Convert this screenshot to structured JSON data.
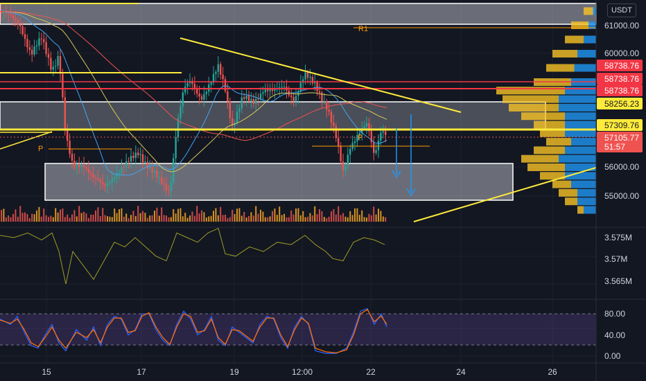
{
  "header": {
    "currency": "USDT"
  },
  "colors": {
    "background": "#131722",
    "grid": "#1e222d",
    "up_candle": "#26a69a",
    "down_candle": "#ef5350",
    "yellow_line": "#ffeb3b",
    "red_line": "#f23645",
    "zone_fill": "#b2b5be",
    "stoch_band": "#7e57c2",
    "profile_blue": "#2196f3",
    "profile_gold": "#f7c325"
  },
  "chart_data": [
    {
      "type": "candlestick",
      "panel": "price",
      "y_unit": "USDT",
      "ylim": [
        54200,
        62200
      ],
      "x_ticks": [
        "15",
        "17",
        "19",
        "12:00",
        "22",
        "24",
        "26"
      ],
      "y_ticks": [
        "61000.00",
        "60000.00",
        "56000.00",
        "55000.00"
      ],
      "price_badges": [
        {
          "text": "58738.76",
          "color": "#f23645"
        },
        {
          "text": "58738.76",
          "color": "#f23645"
        },
        {
          "text": "58738.76",
          "color": "#f23645"
        },
        {
          "text": "58256.23",
          "color": "#ffeb3b"
        },
        {
          "text": "57309.76",
          "color": "#ffeb3b"
        },
        {
          "text": "57105.77",
          "color": "#ef5350"
        },
        {
          "text": "51:57",
          "color": "#ef5350"
        }
      ],
      "annotations": [
        "R1",
        "P",
        "P"
      ],
      "close_path": [
        [
          0,
          61500
        ],
        [
          30,
          61000
        ],
        [
          45,
          60000
        ],
        [
          60,
          60500
        ],
        [
          75,
          59500
        ],
        [
          85,
          60000
        ],
        [
          95,
          57000
        ],
        [
          105,
          56000
        ],
        [
          120,
          56200
        ],
        [
          135,
          55600
        ],
        [
          150,
          55300
        ],
        [
          165,
          55800
        ],
        [
          180,
          56000
        ],
        [
          200,
          56600
        ],
        [
          215,
          56000
        ],
        [
          230,
          55500
        ],
        [
          245,
          55200
        ],
        [
          255,
          57500
        ],
        [
          265,
          58700
        ],
        [
          275,
          59000
        ],
        [
          290,
          58500
        ],
        [
          305,
          59000
        ],
        [
          315,
          59500
        ],
        [
          325,
          58800
        ],
        [
          335,
          57500
        ],
        [
          350,
          58400
        ],
        [
          365,
          58300
        ],
        [
          380,
          58800
        ],
        [
          395,
          58600
        ],
        [
          410,
          58900
        ],
        [
          425,
          58400
        ],
        [
          440,
          59200
        ],
        [
          455,
          59000
        ],
        [
          470,
          58200
        ],
        [
          485,
          57000
        ],
        [
          495,
          55900
        ],
        [
          505,
          56800
        ],
        [
          520,
          57200
        ],
        [
          530,
          57500
        ],
        [
          540,
          56500
        ],
        [
          550,
          57400
        ],
        [
          558,
          57105.77
        ]
      ],
      "volume_profile": [
        {
          "price": 61500,
          "total": 2,
          "blue": 0.5
        },
        {
          "price": 61000,
          "total": 4,
          "blue": 1.2
        },
        {
          "price": 60500,
          "total": 5,
          "blue": 2
        },
        {
          "price": 60000,
          "total": 7,
          "blue": 3
        },
        {
          "price": 59500,
          "total": 8,
          "blue": 3.5
        },
        {
          "price": 59000,
          "total": 10,
          "blue": 4
        },
        {
          "price": 58700,
          "total": 16,
          "blue": 5
        },
        {
          "price": 58400,
          "total": 15,
          "blue": 6
        },
        {
          "price": 58100,
          "total": 14,
          "blue": 6
        },
        {
          "price": 57800,
          "total": 12,
          "blue": 5
        },
        {
          "price": 57500,
          "total": 10,
          "blue": 5
        },
        {
          "price": 57200,
          "total": 9,
          "blue": 5
        },
        {
          "price": 56900,
          "total": 8,
          "blue": 4
        },
        {
          "price": 56600,
          "total": 10,
          "blue": 5
        },
        {
          "price": 56300,
          "total": 12,
          "blue": 6
        },
        {
          "price": 56000,
          "total": 11,
          "blue": 5
        },
        {
          "price": 55700,
          "total": 9,
          "blue": 5
        },
        {
          "price": 55400,
          "total": 7,
          "blue": 4
        },
        {
          "price": 55100,
          "total": 6,
          "blue": 3
        },
        {
          "price": 54800,
          "total": 5,
          "blue": 3
        },
        {
          "price": 54500,
          "total": 3,
          "blue": 2
        }
      ]
    },
    {
      "type": "line",
      "panel": "volume-oscillator",
      "y_unit": "M",
      "ylim": [
        3.562,
        3.58
      ],
      "y_ticks": [
        "3.575M",
        "3.57M",
        "3.565M"
      ],
      "values": [
        [
          0,
          3.5755
        ],
        [
          20,
          3.575
        ],
        [
          40,
          3.576
        ],
        [
          60,
          3.5745
        ],
        [
          75,
          3.576
        ],
        [
          85,
          3.572
        ],
        [
          95,
          3.565
        ],
        [
          105,
          3.572
        ],
        [
          120,
          3.569
        ],
        [
          135,
          3.566
        ],
        [
          150,
          3.57
        ],
        [
          165,
          3.574
        ],
        [
          180,
          3.573
        ],
        [
          195,
          3.575
        ],
        [
          210,
          3.573
        ],
        [
          225,
          3.571
        ],
        [
          240,
          3.57
        ],
        [
          255,
          3.576
        ],
        [
          270,
          3.575
        ],
        [
          285,
          3.574
        ],
        [
          300,
          3.576
        ],
        [
          315,
          3.577
        ],
        [
          325,
          3.5715
        ],
        [
          340,
          3.571
        ],
        [
          360,
          3.573
        ],
        [
          380,
          3.572
        ],
        [
          400,
          3.574
        ],
        [
          420,
          3.5735
        ],
        [
          440,
          3.5755
        ],
        [
          455,
          3.5735
        ],
        [
          470,
          3.572
        ],
        [
          480,
          3.5705
        ],
        [
          495,
          3.57
        ],
        [
          510,
          3.574
        ],
        [
          525,
          3.575
        ],
        [
          540,
          3.5745
        ],
        [
          555,
          3.5735
        ]
      ]
    },
    {
      "type": "line",
      "panel": "stochastic-rsi",
      "ylim": [
        -10,
        110
      ],
      "y_ticks": [
        "80.00",
        "40.00",
        "0.00"
      ],
      "band": [
        20,
        80
      ],
      "series": [
        {
          "color": "#2962ff",
          "values": [
            [
              0,
              70
            ],
            [
              15,
              60
            ],
            [
              25,
              75
            ],
            [
              35,
              45
            ],
            [
              45,
              20
            ],
            [
              55,
              15
            ],
            [
              65,
              40
            ],
            [
              75,
              60
            ],
            [
              85,
              25
            ],
            [
              95,
              10
            ],
            [
              110,
              50
            ],
            [
              125,
              30
            ],
            [
              135,
              55
            ],
            [
              145,
              20
            ],
            [
              155,
              60
            ],
            [
              165,
              75
            ],
            [
              175,
              70
            ],
            [
              185,
              40
            ],
            [
              195,
              50
            ],
            [
              205,
              80
            ],
            [
              215,
              80
            ],
            [
              225,
              50
            ],
            [
              235,
              30
            ],
            [
              245,
              20
            ],
            [
              255,
              60
            ],
            [
              265,
              85
            ],
            [
              275,
              70
            ],
            [
              285,
              40
            ],
            [
              295,
              50
            ],
            [
              305,
              75
            ],
            [
              315,
              30
            ],
            [
              325,
              20
            ],
            [
              335,
              55
            ],
            [
              345,
              45
            ],
            [
              355,
              35
            ],
            [
              365,
              25
            ],
            [
              375,
              60
            ],
            [
              385,
              75
            ],
            [
              395,
              70
            ],
            [
              405,
              35
            ],
            [
              415,
              15
            ],
            [
              425,
              55
            ],
            [
              435,
              75
            ],
            [
              445,
              60
            ],
            [
              455,
              10
            ],
            [
              470,
              5
            ],
            [
              485,
              5
            ],
            [
              500,
              15
            ],
            [
              510,
              45
            ],
            [
              520,
              85
            ],
            [
              530,
              90
            ],
            [
              540,
              60
            ],
            [
              550,
              80
            ],
            [
              558,
              55
            ]
          ]
        },
        {
          "color": "#ff6d00",
          "values": [
            [
              0,
              68
            ],
            [
              15,
              62
            ],
            [
              25,
              70
            ],
            [
              35,
              50
            ],
            [
              45,
              25
            ],
            [
              55,
              18
            ],
            [
              65,
              35
            ],
            [
              75,
              55
            ],
            [
              85,
              30
            ],
            [
              95,
              15
            ],
            [
              110,
              45
            ],
            [
              125,
              35
            ],
            [
              135,
              50
            ],
            [
              145,
              25
            ],
            [
              155,
              55
            ],
            [
              165,
              72
            ],
            [
              175,
              72
            ],
            [
              185,
              45
            ],
            [
              195,
              48
            ],
            [
              205,
              76
            ],
            [
              215,
              82
            ],
            [
              225,
              55
            ],
            [
              235,
              35
            ],
            [
              245,
              22
            ],
            [
              255,
              55
            ],
            [
              265,
              80
            ],
            [
              275,
              75
            ],
            [
              285,
              45
            ],
            [
              295,
              48
            ],
            [
              305,
              70
            ],
            [
              315,
              35
            ],
            [
              325,
              22
            ],
            [
              335,
              50
            ],
            [
              345,
              48
            ],
            [
              355,
              38
            ],
            [
              365,
              28
            ],
            [
              375,
              55
            ],
            [
              385,
              72
            ],
            [
              395,
              72
            ],
            [
              405,
              40
            ],
            [
              415,
              18
            ],
            [
              425,
              50
            ],
            [
              435,
              72
            ],
            [
              445,
              62
            ],
            [
              455,
              15
            ],
            [
              470,
              8
            ],
            [
              485,
              6
            ],
            [
              500,
              12
            ],
            [
              510,
              40
            ],
            [
              520,
              80
            ],
            [
              530,
              88
            ],
            [
              540,
              65
            ],
            [
              550,
              76
            ],
            [
              558,
              60
            ]
          ]
        }
      ]
    }
  ]
}
